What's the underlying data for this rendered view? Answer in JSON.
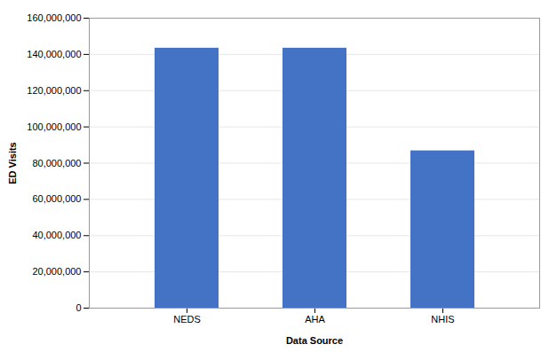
{
  "chart_data": {
    "type": "bar",
    "categories": [
      "NEDS",
      "AHA",
      "NHIS"
    ],
    "values": [
      143432284,
      143432284,
      86783875
    ],
    "color": "#4472C4",
    "xlabel": "Data Source",
    "ylabel": "ED Visits",
    "ylim": [
      0,
      160000000
    ],
    "yticks": [
      0,
      {
        "value": 20000000,
        "label": "20,000,000"
      },
      {
        "value": 40000000,
        "label": "40,000,000"
      },
      {
        "value": 60000000,
        "label": "60,000,000"
      },
      {
        "value": 80000000,
        "label": "80,000,000"
      },
      {
        "value": 100000000,
        "label": "100,000,000"
      },
      {
        "value": 120000000,
        "label": "120,000,000"
      },
      {
        "value": 140000000,
        "label": "140,000,000"
      },
      {
        "value": 160000000,
        "label": "160,000,000"
      }
    ],
    "grid": true
  }
}
